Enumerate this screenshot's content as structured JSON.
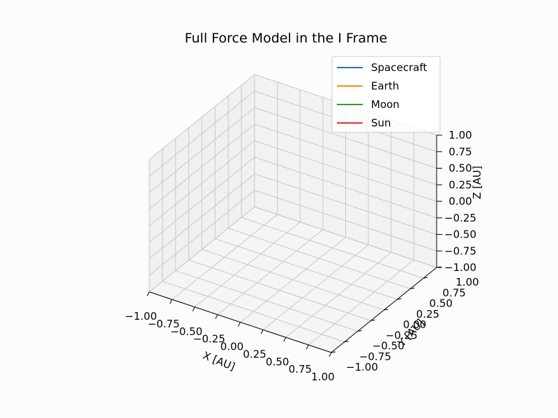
{
  "chart_data": {
    "type": "line",
    "projection": "3d",
    "title": "Full Force Model in the I Frame",
    "xlabel": "X [AU]",
    "ylabel": "Y [AU]",
    "zlabel": "Z [AU]",
    "xlim": [
      -1.0,
      1.0
    ],
    "ylim": [
      -1.0,
      1.0
    ],
    "zlim": [
      -1.0,
      1.0
    ],
    "xticks": [
      "−1.00",
      "−0.75",
      "−0.50",
      "−0.25",
      "0.00",
      "0.25",
      "0.50",
      "0.75",
      "1.00"
    ],
    "yticks": [
      "−1.00",
      "−0.75",
      "−0.50",
      "−0.25",
      "0.00",
      "0.25",
      "0.50",
      "0.75",
      "1.00"
    ],
    "zticks": [
      "−1.00",
      "−0.75",
      "−0.50",
      "−0.25",
      "0.00",
      "0.25",
      "0.50",
      "0.75",
      "1.00"
    ],
    "grid": true,
    "legend_position": "top-right",
    "series": [
      {
        "name": "Spacecraft",
        "color": "#1f77b4",
        "values": []
      },
      {
        "name": "Earth",
        "color": "#ff7f0e",
        "values": []
      },
      {
        "name": "Moon",
        "color": "#2ca02c",
        "values": []
      },
      {
        "name": "Sun",
        "color": "#d62728",
        "values": []
      }
    ]
  }
}
